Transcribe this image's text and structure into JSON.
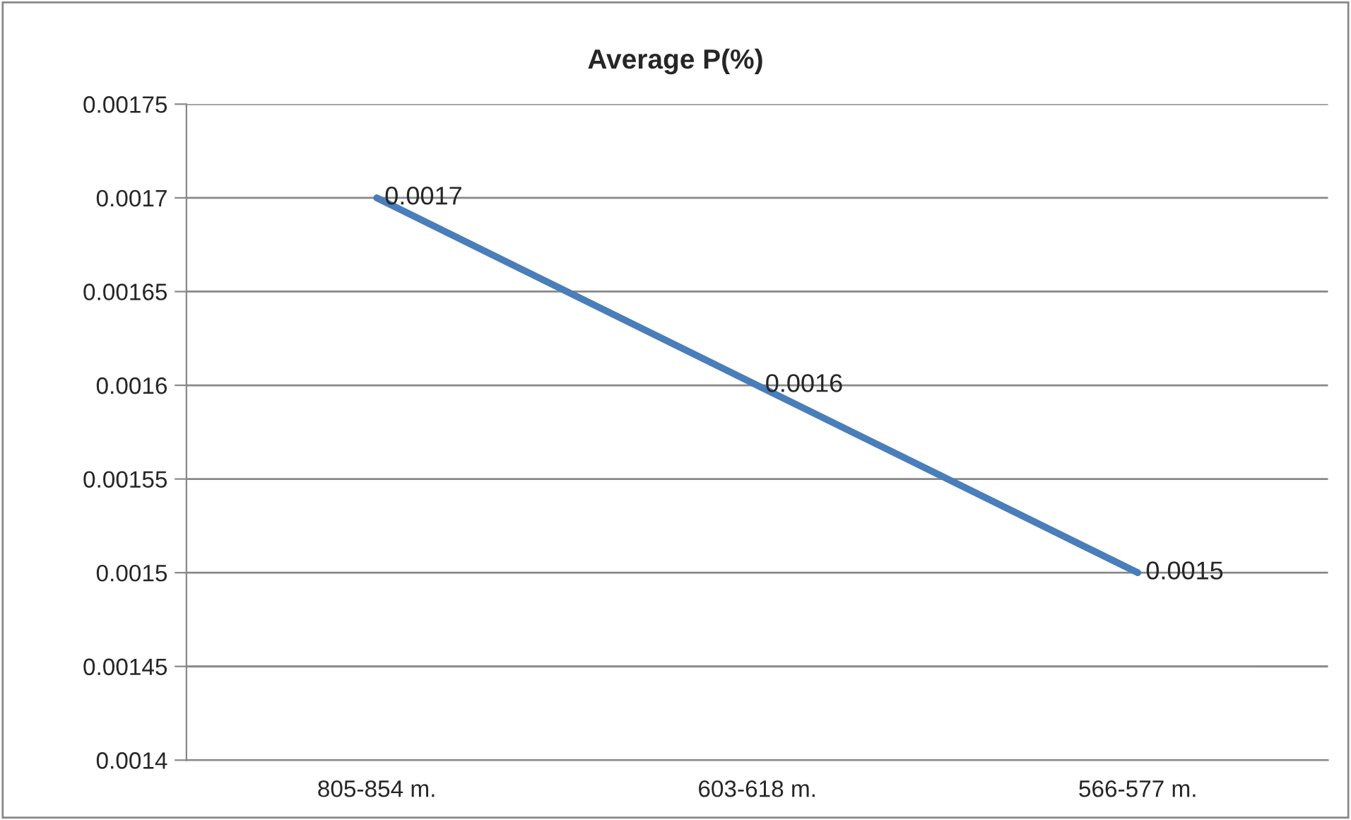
{
  "chart_data": {
    "type": "line",
    "title": "Average P(%)",
    "categories": [
      "805-854 m.",
      "603-618 m.",
      "566-577 m."
    ],
    "series": [
      {
        "color": "#4a7ebb",
        "values": [
          0.0017,
          0.0016,
          0.0015
        ]
      }
    ],
    "ylim": [
      0.0014,
      0.00175
    ],
    "yticks": [
      0.0014,
      0.00145,
      0.0015,
      0.00155,
      0.0016,
      0.00165,
      0.0017,
      0.00175
    ],
    "grid": "y",
    "data_labels": true,
    "marker": "none",
    "line_style": "solid",
    "legend": false
  }
}
